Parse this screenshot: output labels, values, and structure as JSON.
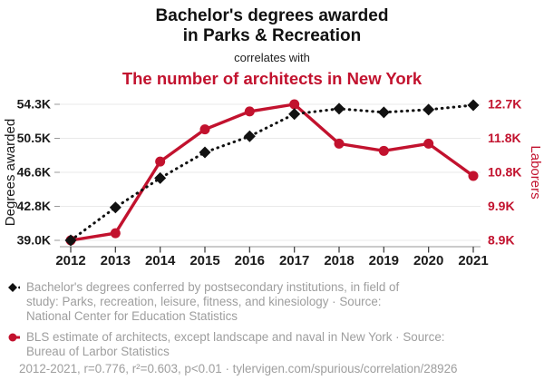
{
  "header": {
    "title_line1": "Bachelor's degrees awarded",
    "title_line2": "in Parks & Recreation",
    "connector": "correlates with",
    "subtitle": "The number of architects in New York"
  },
  "colors": {
    "accent_red": "#c2122e",
    "text_black": "#1a1a1a",
    "legend_gray": "#9e9e9e"
  },
  "chart_data": {
    "type": "line",
    "x": [
      2012,
      2013,
      2014,
      2015,
      2016,
      2017,
      2018,
      2019,
      2020,
      2021
    ],
    "series": [
      {
        "name": "Bachelor's degrees conferred in Parks, recreation, leisure, fitness, and kinesiology",
        "axis": "left",
        "style": "dotted-diamond",
        "color": "#111111",
        "values_k": [
          39.0,
          42.7,
          46.0,
          48.9,
          50.7,
          53.2,
          53.8,
          53.4,
          53.7,
          54.2
        ]
      },
      {
        "name": "BLS estimate of architects in New York",
        "axis": "right",
        "style": "solid-circle",
        "color": "#c2122e",
        "values_k": [
          8.9,
          9.1,
          11.1,
          12.0,
          12.5,
          12.7,
          11.6,
          11.4,
          11.6,
          10.7
        ]
      }
    ],
    "left_axis": {
      "label": "Degrees awarded",
      "ticks": [
        "39.0K",
        "42.8K",
        "46.6K",
        "50.5K",
        "54.3K"
      ],
      "range_k": [
        39.0,
        54.3
      ]
    },
    "right_axis": {
      "label": "Laborers",
      "ticks": [
        "8.9K",
        "9.9K",
        "10.8K",
        "11.8K",
        "12.7K"
      ],
      "range_k": [
        8.9,
        12.7
      ]
    },
    "grid": true,
    "legend_position": "bottom"
  },
  "legend": {
    "entries": [
      {
        "marker": "black-diamond-dotted",
        "text": "Bachelor's degrees conferred by postsecondary institutions, in field of\nstudy: Parks, recreation, leisure, fitness, and kinesiology · Source:\nNational Center for Education Statistics"
      },
      {
        "marker": "red-circle-line",
        "text": "BLS estimate of architects, except landscape and naval in New York · Source:\nBureau of Larbor Statistics"
      }
    ]
  },
  "footer": {
    "text": "2012-2021, r=0.776, r²=0.603, p<0.01 · tylervigen.com/spurious/correlation/28926"
  }
}
